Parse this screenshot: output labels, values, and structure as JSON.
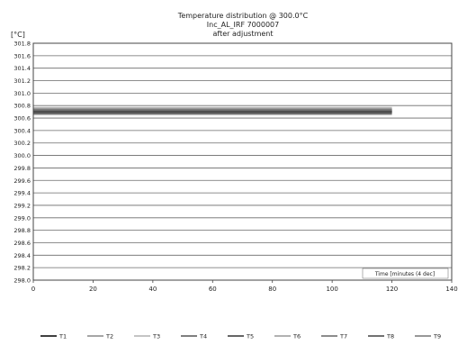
{
  "chart_data": {
    "type": "line",
    "title_lines": [
      "Temperature distribution @ 300.0°C",
      "Inc_AL_IRF 7000007",
      "after adjustment"
    ],
    "ylabel": "[°C]",
    "xlabel": "Time [minutes (4 dec]",
    "ylim": [
      298.0,
      301.8
    ],
    "xlim": [
      0,
      140
    ],
    "y_ticks": [
      "301.8",
      "301.6",
      "301.4",
      "301.2",
      "301.0",
      "300.8",
      "300.6",
      "300.4",
      "300.2",
      "300.0",
      "299.8",
      "299.6",
      "299.4",
      "299.2",
      "299.0",
      "298.8",
      "298.6",
      "298.4",
      "298.2",
      "298.0"
    ],
    "x_ticks": [
      "0",
      "20",
      "40",
      "60",
      "80",
      "100",
      "120",
      "140"
    ],
    "grid": true,
    "legend_position": "bottom",
    "series": [
      {
        "name": "T1",
        "color": "#000000",
        "x": [
          0,
          120
        ],
        "y": [
          300.7,
          300.7
        ]
      },
      {
        "name": "T2",
        "color": "#888888",
        "x": [
          0,
          120
        ],
        "y": [
          300.74,
          300.74
        ]
      },
      {
        "name": "T3",
        "color": "#b0b0b0",
        "x": [
          0,
          120
        ],
        "y": [
          300.66,
          300.66
        ]
      },
      {
        "name": "T4",
        "color": "#555555",
        "x": [
          0,
          120
        ],
        "y": [
          300.72,
          300.72
        ]
      },
      {
        "name": "T5",
        "color": "#333333",
        "x": [
          0,
          120
        ],
        "y": [
          300.68,
          300.68
        ]
      },
      {
        "name": "T6",
        "color": "#999999",
        "x": [
          0,
          120
        ],
        "y": [
          300.76,
          300.76
        ]
      },
      {
        "name": "T7",
        "color": "#666666",
        "x": [
          0,
          120
        ],
        "y": [
          300.69,
          300.69
        ]
      },
      {
        "name": "T8",
        "color": "#444444",
        "x": [
          0,
          120
        ],
        "y": [
          300.71,
          300.71
        ]
      },
      {
        "name": "T9",
        "color": "#777777",
        "x": [
          0,
          120
        ],
        "y": [
          300.73,
          300.73
        ]
      }
    ]
  }
}
